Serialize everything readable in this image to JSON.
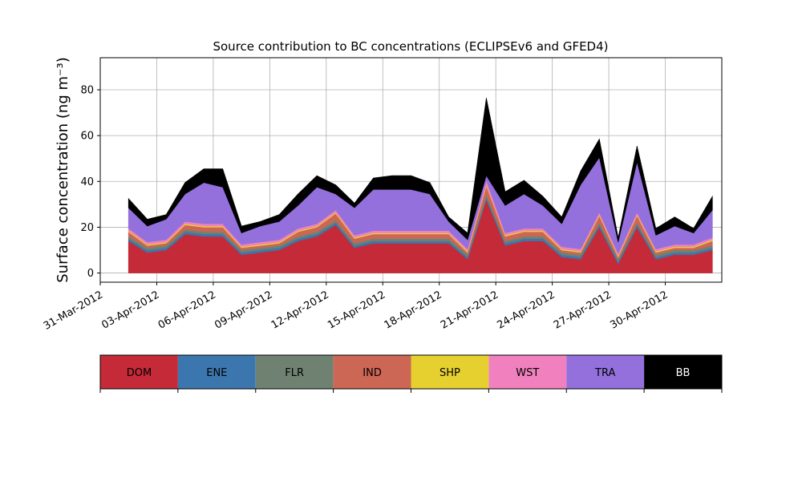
{
  "chart_data": {
    "type": "area",
    "stacked": true,
    "title": "Source contribution to BC concentrations (ECLIPSEv6 and GFED4)",
    "ylabel": "Surface concentration (ng m⁻³)",
    "xlabel": "",
    "xlim": [
      "2012-03-31",
      "2012-05-03"
    ],
    "ylim": [
      -4,
      94
    ],
    "yticks": [
      0,
      20,
      40,
      60,
      80
    ],
    "xticks": [
      "31-Mar-2012",
      "03-Apr-2012",
      "06-Apr-2012",
      "09-Apr-2012",
      "12-Apr-2012",
      "15-Apr-2012",
      "18-Apr-2012",
      "21-Apr-2012",
      "24-Apr-2012",
      "27-Apr-2012",
      "30-Apr-2012"
    ],
    "grid": true,
    "legend_placement": "below the plot as a horizontal colorbar",
    "x": [
      "2012-04-01",
      "2012-04-02",
      "2012-04-03",
      "2012-04-04",
      "2012-04-05",
      "2012-04-06",
      "2012-04-07",
      "2012-04-08",
      "2012-04-09",
      "2012-04-10",
      "2012-04-11",
      "2012-04-12",
      "2012-04-13",
      "2012-04-14",
      "2012-04-15",
      "2012-04-16",
      "2012-04-17",
      "2012-04-18",
      "2012-04-19",
      "2012-04-20",
      "2012-04-21",
      "2012-04-22",
      "2012-04-23",
      "2012-04-24",
      "2012-04-25",
      "2012-04-26",
      "2012-04-27",
      "2012-04-28",
      "2012-04-29",
      "2012-04-30",
      "2012-05-01",
      "2012-05-02"
    ],
    "series": [
      {
        "name": "DOM",
        "color": "#c52a38",
        "values": [
          14,
          9,
          10,
          17,
          16,
          16,
          8,
          9,
          10,
          14,
          16,
          21,
          11,
          13,
          13,
          13,
          13,
          13,
          6,
          32,
          12,
          14,
          14,
          7,
          6,
          20,
          4,
          20,
          6,
          8,
          8,
          10
        ]
      },
      {
        "name": "ENE",
        "color": "#3b77ae",
        "values": [
          1,
          1,
          1,
          1,
          1,
          1,
          1,
          1,
          1,
          1,
          1,
          1,
          1,
          1,
          1,
          1,
          1,
          1,
          1,
          1,
          1,
          1,
          1,
          1,
          1,
          1,
          1,
          1,
          1,
          1,
          1,
          1
        ]
      },
      {
        "name": "FLR",
        "color": "#6f8271",
        "values": [
          1,
          1,
          1,
          1,
          1,
          1,
          1,
          1,
          1,
          1,
          1,
          1,
          1,
          1,
          1,
          1,
          1,
          1,
          1,
          1,
          1,
          1,
          1,
          1,
          1,
          1,
          1,
          1,
          1,
          1,
          1,
          1
        ]
      },
      {
        "name": "IND",
        "color": "#cc6655",
        "values": [
          2,
          1,
          1,
          2,
          2,
          2,
          1,
          1,
          1,
          2,
          2,
          3,
          2,
          2,
          2,
          2,
          2,
          2,
          1,
          4,
          2,
          2,
          2,
          1,
          1,
          3,
          1,
          3,
          1,
          1,
          1,
          2
        ]
      },
      {
        "name": "SHP",
        "color": "#e6d02f",
        "values": [
          0.5,
          0.5,
          0.5,
          0.5,
          0.5,
          0.5,
          0.5,
          0.5,
          0.5,
          0.5,
          0.5,
          0.5,
          0.5,
          0.5,
          0.5,
          0.5,
          0.5,
          0.5,
          0.5,
          0.5,
          0.5,
          0.5,
          0.5,
          0.5,
          0.5,
          0.5,
          0.5,
          0.5,
          0.5,
          0.5,
          0.5,
          0.5
        ]
      },
      {
        "name": "WST",
        "color": "#f081be",
        "values": [
          1,
          1,
          1,
          1,
          1,
          1,
          1,
          1,
          1,
          1,
          1,
          1,
          1,
          1,
          1,
          1,
          1,
          1,
          1,
          2,
          1,
          1,
          1,
          1,
          1,
          1,
          1,
          1,
          1,
          1,
          1,
          1
        ]
      },
      {
        "name": "TRA",
        "color": "#9370dc",
        "values": [
          9,
          7,
          9,
          12,
          18,
          16,
          5,
          7,
          8,
          10,
          16,
          7,
          12,
          18,
          18,
          18,
          16,
          4,
          4,
          2,
          12,
          15,
          10,
          10,
          28,
          24,
          5,
          22,
          6,
          8,
          5,
          12
        ]
      },
      {
        "name": "BB",
        "color": "#000000",
        "values": [
          4,
          3,
          2,
          5,
          6,
          8,
          3,
          2,
          3,
          5,
          5,
          4,
          2,
          5,
          6,
          6,
          5,
          2,
          3,
          34,
          6,
          6,
          4,
          3,
          6,
          8,
          2,
          7,
          3,
          4,
          2,
          6
        ]
      }
    ]
  }
}
